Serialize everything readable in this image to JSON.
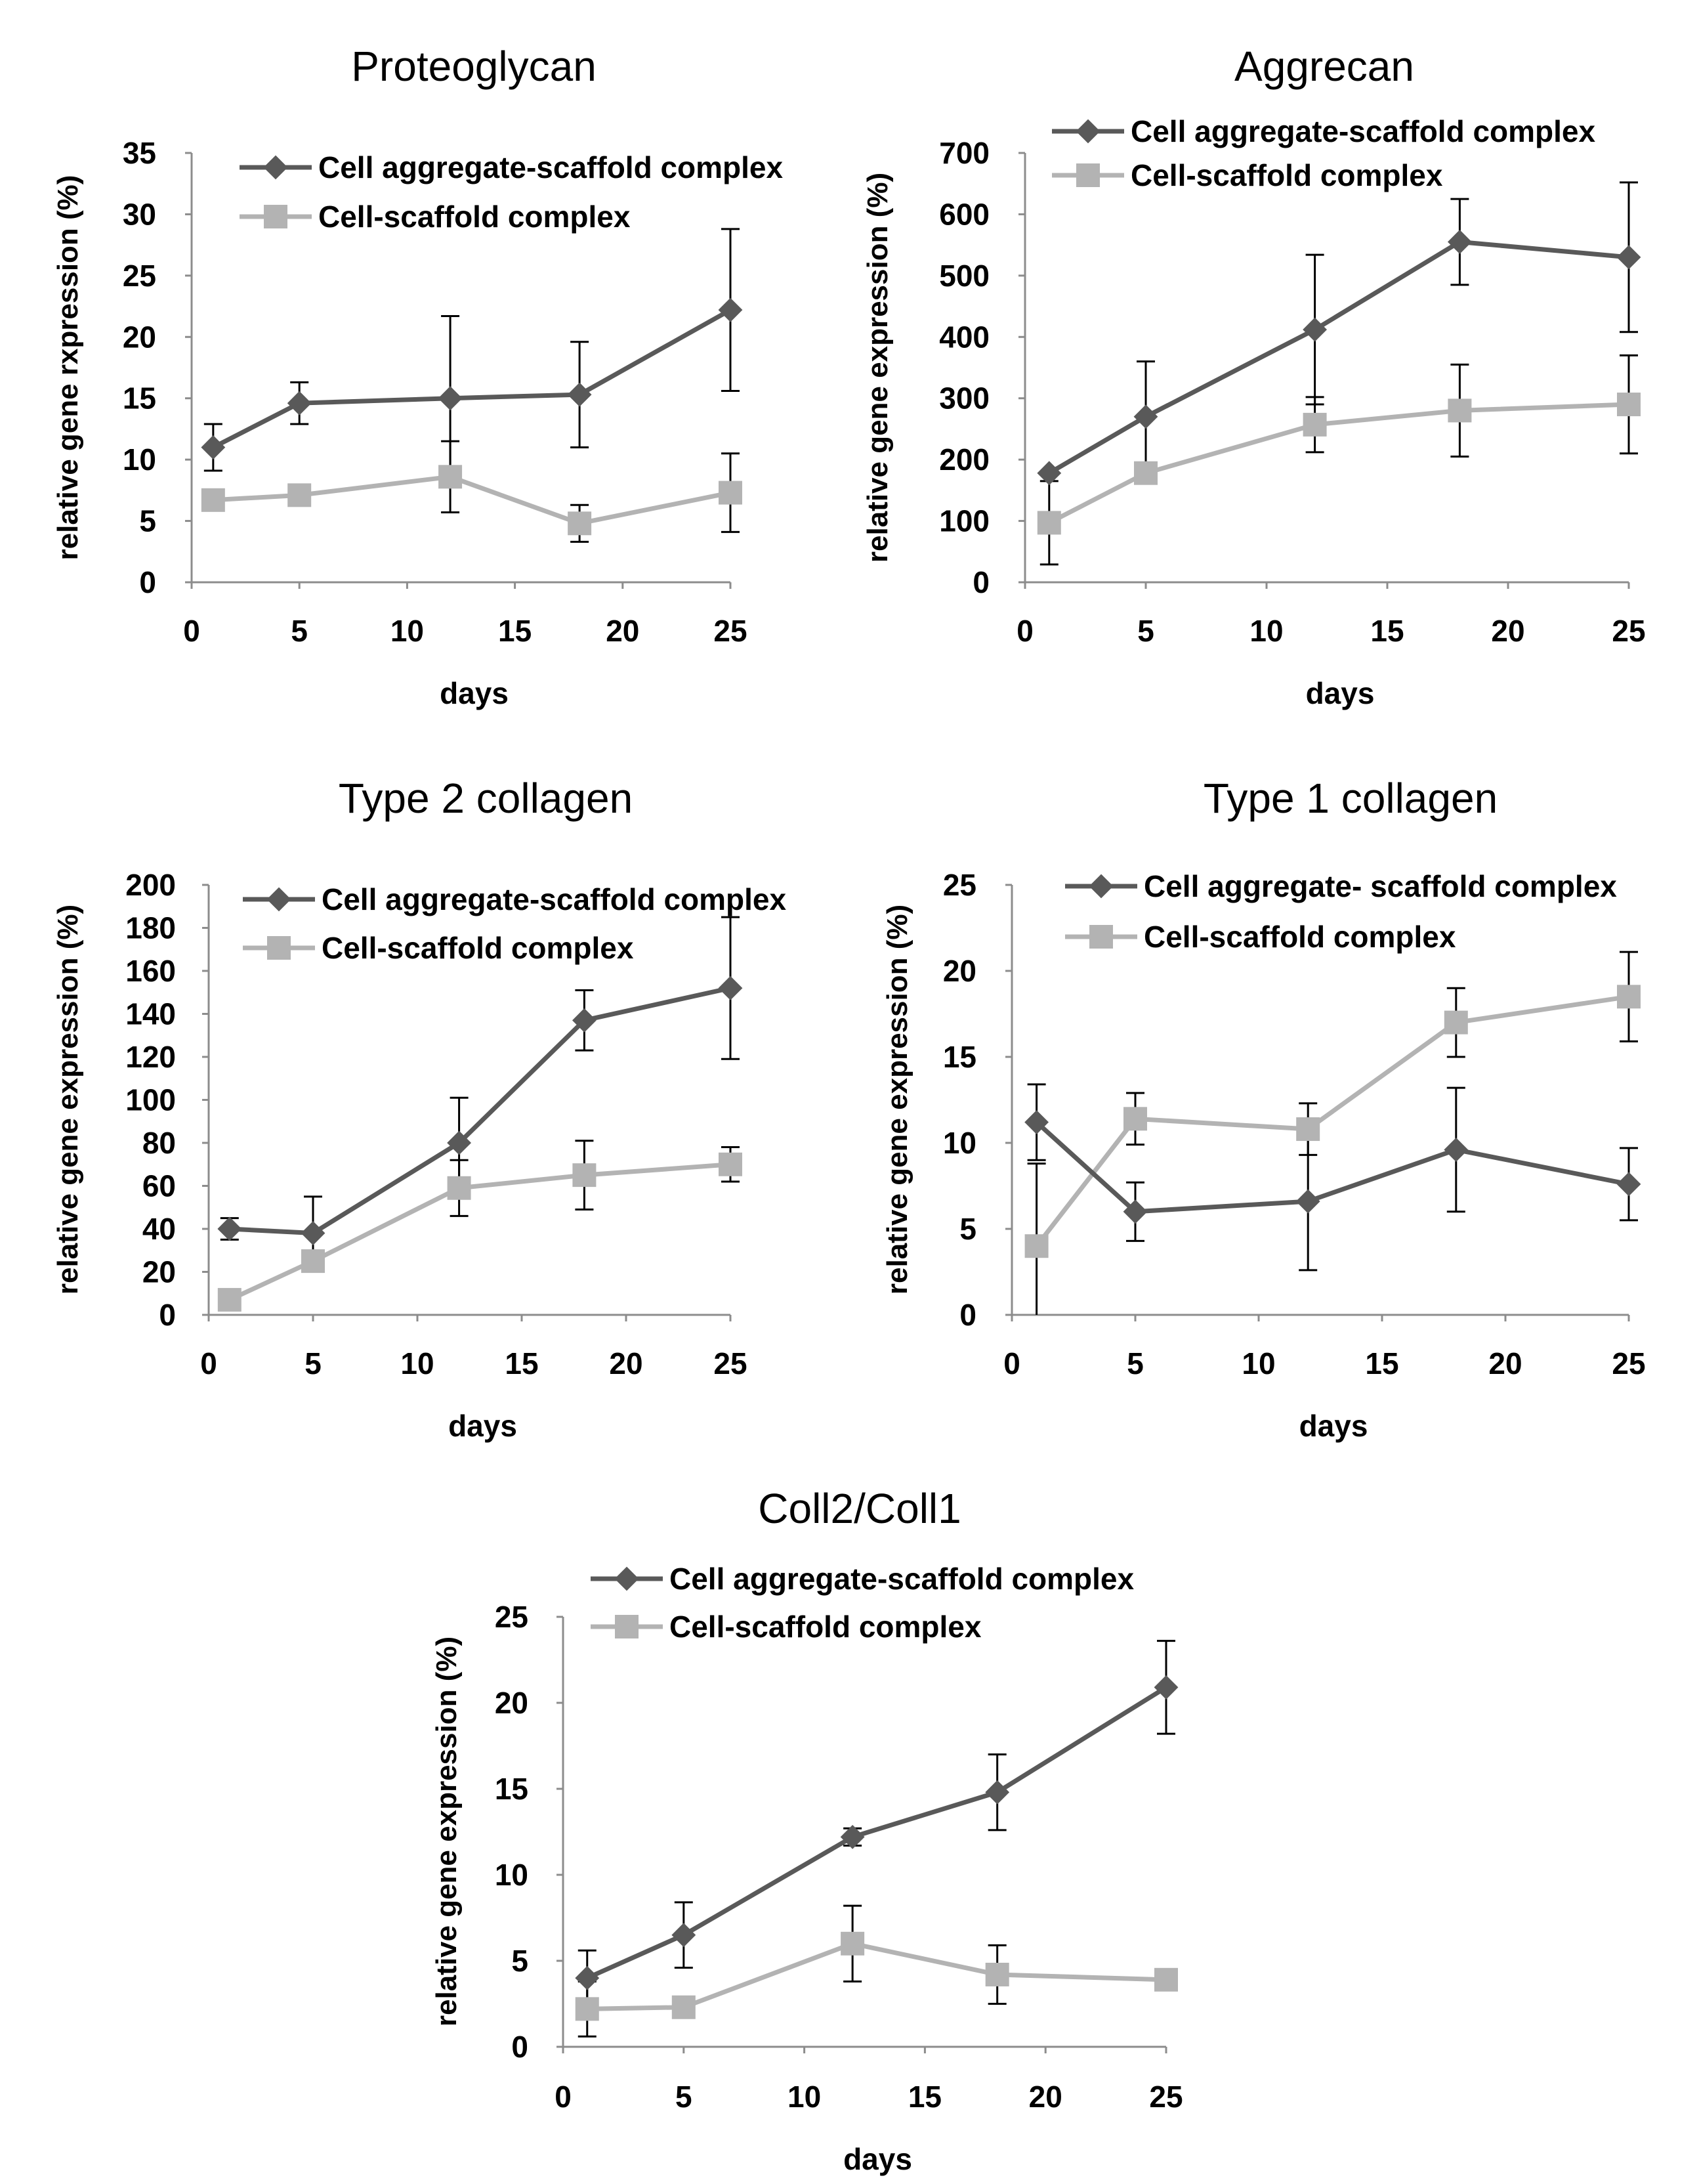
{
  "chart_data": [
    {
      "type": "line",
      "title": "Proteoglycan",
      "xlabel": "days",
      "ylabel": "relative gene rxpression (%)",
      "xlim": [
        0,
        25
      ],
      "ylim": [
        0,
        35
      ],
      "xticks": [
        0,
        5,
        10,
        15,
        20,
        25
      ],
      "yticks": [
        0,
        5,
        10,
        15,
        20,
        25,
        30,
        35
      ],
      "grid": false,
      "legend": "top",
      "series": [
        {
          "name": "Cell aggregate-scaffold complex",
          "color": "#595959",
          "marker": "diamond",
          "x": [
            1,
            5,
            12,
            18,
            25
          ],
          "y": [
            11.0,
            14.6,
            15.0,
            15.3,
            22.2
          ],
          "err": [
            1.9,
            1.7,
            6.7,
            4.3,
            6.6
          ]
        },
        {
          "name": "Cell-scaffold complex",
          "color": "#b3b3b3",
          "marker": "square",
          "x": [
            1,
            5,
            12,
            18,
            25
          ],
          "y": [
            6.7,
            7.1,
            8.6,
            4.8,
            7.3
          ],
          "err": [
            0.0,
            0.0,
            2.9,
            1.5,
            3.2
          ]
        }
      ]
    },
    {
      "type": "line",
      "title": "Aggrecan",
      "xlabel": "days",
      "ylabel": "relative gene expression (%)",
      "xlim": [
        0,
        25
      ],
      "ylim": [
        0,
        700
      ],
      "xticks": [
        0,
        5,
        10,
        15,
        20,
        25
      ],
      "yticks": [
        0,
        100,
        200,
        300,
        400,
        500,
        600,
        700
      ],
      "grid": false,
      "legend": "top",
      "series": [
        {
          "name": "Cell aggregate-scaffold complex",
          "color": "#595959",
          "marker": "diamond",
          "x": [
            1,
            5,
            12,
            18,
            25
          ],
          "y": [
            178,
            270,
            412,
            555,
            530
          ],
          "err": [
            0,
            90,
            122,
            70,
            122
          ]
        },
        {
          "name": "Cell-scaffold complex",
          "color": "#b3b3b3",
          "marker": "square",
          "x": [
            1,
            5,
            12,
            18,
            25
          ],
          "y": [
            97,
            178,
            257,
            280,
            290
          ],
          "err": [
            68,
            0,
            45,
            75,
            80
          ]
        }
      ]
    },
    {
      "type": "line",
      "title": "Type 2 collagen",
      "xlabel": "days",
      "ylabel": "relative gene expression (%)",
      "xlim": [
        0,
        25
      ],
      "ylim": [
        0,
        200
      ],
      "xticks": [
        0,
        5,
        10,
        15,
        20,
        25
      ],
      "yticks": [
        0,
        20,
        40,
        60,
        80,
        100,
        120,
        140,
        160,
        180,
        200
      ],
      "grid": false,
      "legend": "top",
      "series": [
        {
          "name": "Cell aggregate-scaffold complex",
          "color": "#595959",
          "marker": "diamond",
          "x": [
            1,
            5,
            12,
            18,
            25
          ],
          "y": [
            40,
            38,
            80,
            137,
            152
          ],
          "err": [
            5,
            17,
            21,
            14,
            33
          ]
        },
        {
          "name": "Cell-scaffold complex",
          "color": "#b3b3b3",
          "marker": "square",
          "x": [
            1,
            5,
            12,
            18,
            25
          ],
          "y": [
            7,
            25,
            59,
            65,
            70
          ],
          "err": [
            0,
            0,
            13,
            16,
            8
          ]
        }
      ]
    },
    {
      "type": "line",
      "title": "Type 1 collagen",
      "xlabel": "days",
      "ylabel": "relative gene expression (%)",
      "xlim": [
        0,
        25
      ],
      "ylim": [
        0,
        25
      ],
      "xticks": [
        0,
        5,
        10,
        15,
        20,
        25
      ],
      "yticks": [
        0,
        5,
        10,
        15,
        20,
        25
      ],
      "grid": false,
      "legend": "top",
      "series": [
        {
          "name": "Cell aggregate- scaffold complex",
          "color": "#595959",
          "marker": "diamond",
          "x": [
            1,
            5,
            12,
            18,
            25
          ],
          "y": [
            11.2,
            6.0,
            6.6,
            9.6,
            7.6
          ],
          "err": [
            2.2,
            1.7,
            4.0,
            3.6,
            2.1
          ]
        },
        {
          "name": "Cell-scaffold complex",
          "color": "#b3b3b3",
          "marker": "square",
          "x": [
            1,
            5,
            12,
            18,
            25
          ],
          "y": [
            4.0,
            11.4,
            10.8,
            17.0,
            18.5
          ],
          "err": [
            4.8,
            1.5,
            1.5,
            2.0,
            2.6
          ]
        }
      ]
    },
    {
      "type": "line",
      "title": "Coll2/Coll1",
      "xlabel": "days",
      "ylabel": "relative gene expression (%)",
      "xlim": [
        0,
        25
      ],
      "ylim": [
        0,
        25
      ],
      "xticks": [
        0,
        5,
        10,
        15,
        20,
        25
      ],
      "yticks": [
        0,
        5,
        10,
        15,
        20,
        25
      ],
      "grid": false,
      "legend": "top",
      "series": [
        {
          "name": "Cell aggregate-scaffold complex",
          "color": "#595959",
          "marker": "diamond",
          "x": [
            1,
            5,
            12,
            18,
            25
          ],
          "y": [
            4.0,
            6.5,
            12.2,
            14.8,
            20.9
          ],
          "err": [
            1.6,
            1.9,
            0.5,
            2.2,
            2.7
          ]
        },
        {
          "name": "Cell-scaffold complex",
          "color": "#b3b3b3",
          "marker": "square",
          "x": [
            1,
            5,
            12,
            18,
            25
          ],
          "y": [
            2.2,
            2.3,
            6.0,
            4.2,
            3.9
          ],
          "err": [
            1.6,
            0.0,
            2.2,
            1.7,
            0.0
          ]
        }
      ]
    }
  ]
}
